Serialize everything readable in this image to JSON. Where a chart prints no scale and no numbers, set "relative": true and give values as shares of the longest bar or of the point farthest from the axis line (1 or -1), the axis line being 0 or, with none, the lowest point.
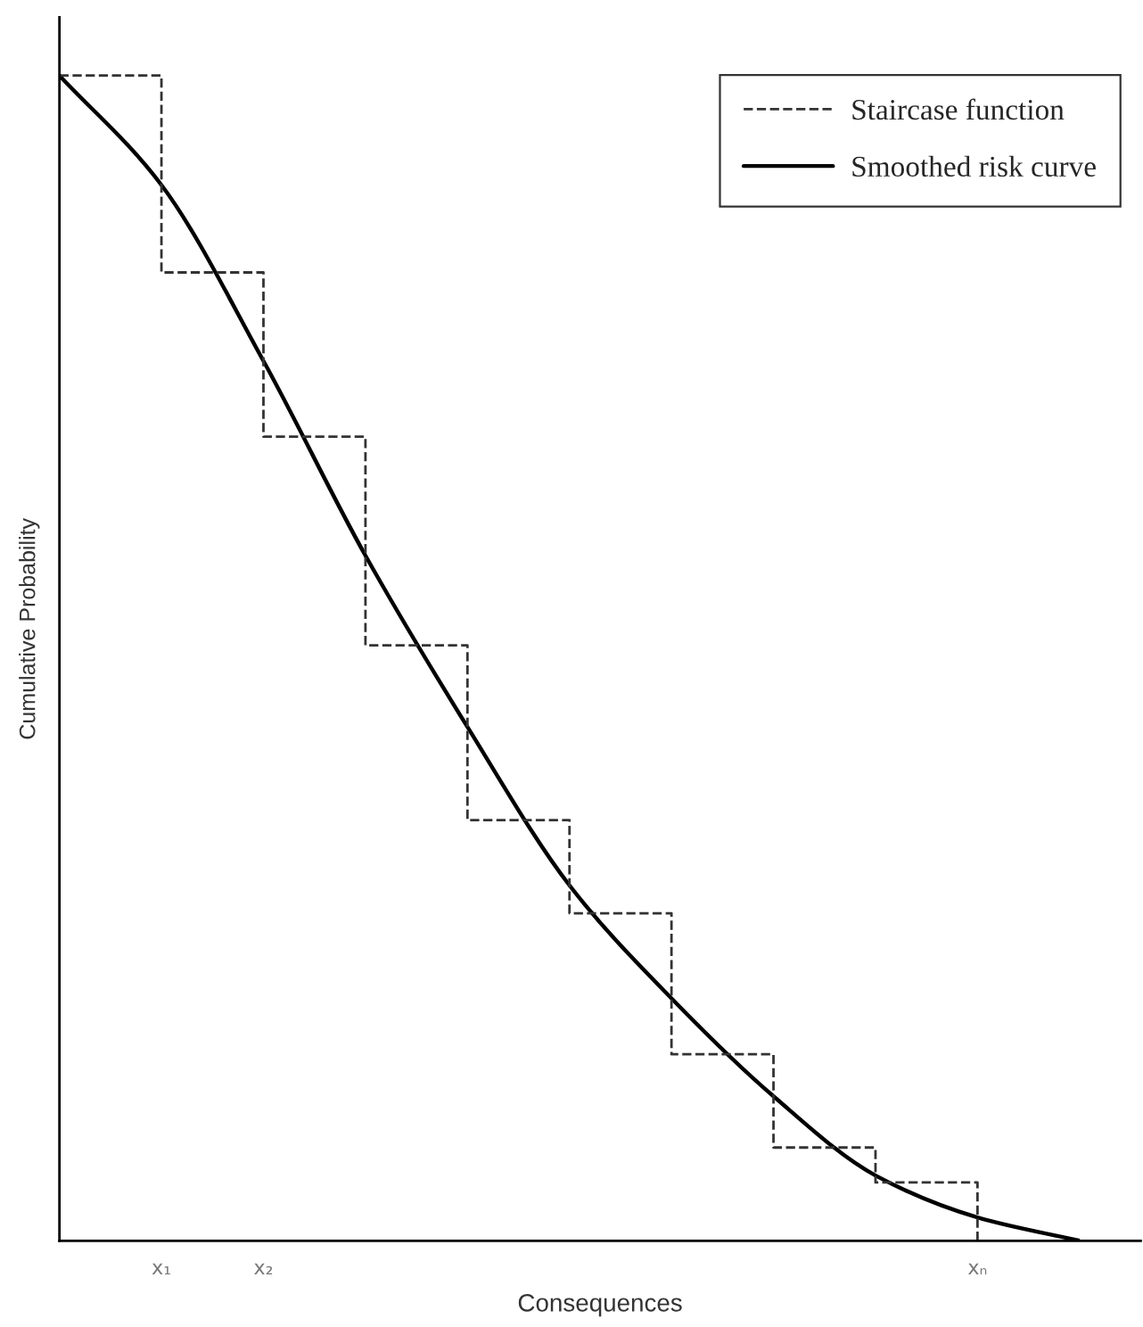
{
  "chart_data": {
    "type": "line",
    "xlabel": "Consequences",
    "ylabel": "Cumulative Probability",
    "relative": true,
    "categories": [
      null,
      "x₁",
      "x₂",
      null,
      null,
      null,
      null,
      null,
      null,
      "xₙ",
      null
    ],
    "tick_labels": "x",
    "grid": false,
    "legend": "top right",
    "series": [
      {
        "name": "Staircase function",
        "type": "step",
        "line_style": "dashed",
        "color": "#333333",
        "values": [
          1,
          0.831,
          0.69,
          0.511,
          0.361,
          0.281,
          0.16,
          0.08,
          0.05,
          0,
          null
        ]
      },
      {
        "name": "Smoothed risk curve",
        "line_style": "solid",
        "color": "#000000",
        "values": [
          1,
          0.906,
          0.755,
          0.588,
          0.441,
          0.305,
          0.208,
          0.124,
          0.056,
          0.02,
          0
        ]
      }
    ]
  }
}
